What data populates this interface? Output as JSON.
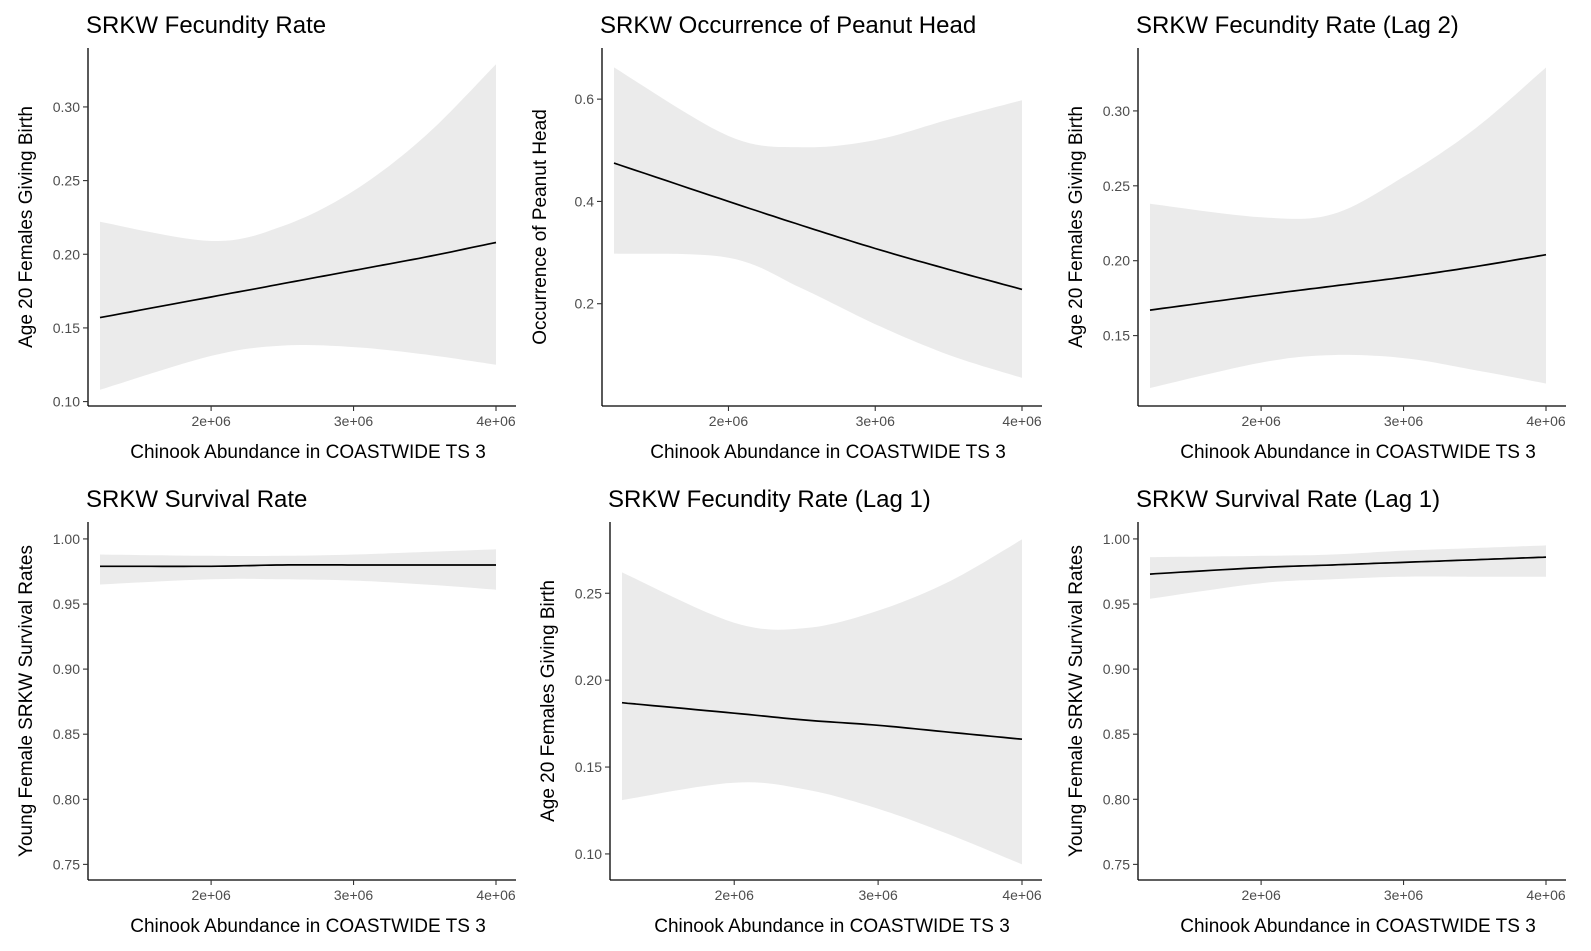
{
  "colors": {
    "band": "#ebebeb",
    "line": "#000000",
    "axis": "#000000",
    "tick_text": "#4d4d4d"
  },
  "chart_data": [
    {
      "type": "line",
      "title": "SRKW Fecundity Rate",
      "xlabel": "Chinook Abundance in  COASTWIDE  TS  3",
      "ylabel": "Age 20 Females Giving Birth",
      "xlim": [
        1220000,
        4000000
      ],
      "ylim": [
        0.097,
        0.34
      ],
      "xticks": [
        2000000,
        3000000,
        4000000
      ],
      "xtick_labels": [
        "2e+06",
        "3e+06",
        "4e+06"
      ],
      "yticks": [
        0.1,
        0.15,
        0.2,
        0.25,
        0.3
      ],
      "ytick_labels": [
        "0.10",
        "0.15",
        "0.20",
        "0.25",
        "0.30"
      ],
      "x": [
        1220000,
        2000000,
        2500000,
        3000000,
        3500000,
        4000000
      ],
      "y": [
        0.157,
        0.171,
        0.18,
        0.189,
        0.198,
        0.208
      ],
      "lower": [
        0.108,
        0.131,
        0.138,
        0.137,
        0.132,
        0.125
      ],
      "upper": [
        0.222,
        0.209,
        0.219,
        0.243,
        0.28,
        0.329
      ]
    },
    {
      "type": "line",
      "title": "SRKW Occurrence of Peanut Head",
      "xlabel": "Chinook Abundance in  COASTWIDE  TS  3",
      "ylabel": "Occurrence of Peanut Head",
      "xlim": [
        1220000,
        4000000
      ],
      "ylim": [
        0.0,
        0.7
      ],
      "xticks": [
        2000000,
        3000000,
        4000000
      ],
      "xtick_labels": [
        "2e+06",
        "3e+06",
        "4e+06"
      ],
      "yticks": [
        0.2,
        0.4,
        0.6
      ],
      "ytick_labels": [
        "0.2",
        "0.4",
        "0.6"
      ],
      "x": [
        1220000,
        2000000,
        2500000,
        3000000,
        3500000,
        4000000
      ],
      "y": [
        0.475,
        0.4,
        0.353,
        0.308,
        0.267,
        0.228
      ],
      "lower": [
        0.298,
        0.29,
        0.23,
        0.16,
        0.1,
        0.055
      ],
      "upper": [
        0.662,
        0.528,
        0.506,
        0.52,
        0.56,
        0.598
      ]
    },
    {
      "type": "line",
      "title": "SRKW Fecundity Rate (Lag 2)",
      "xlabel": "Chinook Abundance in  COASTWIDE  TS  3",
      "ylabel": "Age 20 Females Giving Birth",
      "xlim": [
        1220000,
        4000000
      ],
      "ylim": [
        0.103,
        0.342
      ],
      "xticks": [
        2000000,
        3000000,
        4000000
      ],
      "xtick_labels": [
        "2e+06",
        "3e+06",
        "4e+06"
      ],
      "yticks": [
        0.15,
        0.2,
        0.25,
        0.3
      ],
      "ytick_labels": [
        "0.15",
        "0.20",
        "0.25",
        "0.30"
      ],
      "x": [
        1220000,
        2000000,
        2500000,
        3000000,
        3500000,
        4000000
      ],
      "y": [
        0.167,
        0.177,
        0.183,
        0.189,
        0.196,
        0.204
      ],
      "lower": [
        0.115,
        0.132,
        0.137,
        0.135,
        0.127,
        0.118
      ],
      "upper": [
        0.238,
        0.229,
        0.231,
        0.256,
        0.288,
        0.329
      ]
    },
    {
      "type": "line",
      "title": "SRKW Survival Rate",
      "xlabel": "Chinook Abundance in  COASTWIDE  TS  3",
      "ylabel": "Young Female SRKW Survival Rates",
      "xlim": [
        1220000,
        4000000
      ],
      "ylim": [
        0.738,
        1.013
      ],
      "xticks": [
        2000000,
        3000000,
        4000000
      ],
      "xtick_labels": [
        "2e+06",
        "3e+06",
        "4e+06"
      ],
      "yticks": [
        0.75,
        0.8,
        0.85,
        0.9,
        0.95,
        1.0
      ],
      "ytick_labels": [
        "0.75",
        "0.80",
        "0.85",
        "0.90",
        "0.95",
        "1.00"
      ],
      "x": [
        1220000,
        2000000,
        2500000,
        3000000,
        3500000,
        4000000
      ],
      "y": [
        0.979,
        0.979,
        0.98,
        0.98,
        0.98,
        0.98
      ],
      "lower": [
        0.965,
        0.969,
        0.969,
        0.968,
        0.965,
        0.961
      ],
      "upper": [
        0.988,
        0.987,
        0.987,
        0.988,
        0.99,
        0.992
      ]
    },
    {
      "type": "line",
      "title": "SRKW Fecundity Rate (Lag 1)",
      "xlabel": "Chinook Abundance in  COASTWIDE  TS  3",
      "ylabel": "Age 20 Females Giving Birth",
      "xlim": [
        1220000,
        4000000
      ],
      "ylim": [
        0.085,
        0.291
      ],
      "xticks": [
        2000000,
        3000000,
        4000000
      ],
      "xtick_labels": [
        "2e+06",
        "3e+06",
        "4e+06"
      ],
      "yticks": [
        0.1,
        0.15,
        0.2,
        0.25
      ],
      "ytick_labels": [
        "0.10",
        "0.15",
        "0.20",
        "0.25"
      ],
      "x": [
        1220000,
        2000000,
        2500000,
        3000000,
        3500000,
        4000000
      ],
      "y": [
        0.187,
        0.181,
        0.177,
        0.174,
        0.17,
        0.166
      ],
      "lower": [
        0.131,
        0.141,
        0.137,
        0.126,
        0.111,
        0.094
      ],
      "upper": [
        0.262,
        0.233,
        0.23,
        0.24,
        0.257,
        0.281
      ]
    },
    {
      "type": "line",
      "title": "SRKW Survival Rate (Lag 1)",
      "xlabel": "Chinook Abundance in  COASTWIDE  TS  3",
      "ylabel": "Young Female SRKW Survival Rates",
      "xlim": [
        1220000,
        4000000
      ],
      "ylim": [
        0.738,
        1.013
      ],
      "xticks": [
        2000000,
        3000000,
        4000000
      ],
      "xtick_labels": [
        "2e+06",
        "3e+06",
        "4e+06"
      ],
      "yticks": [
        0.75,
        0.8,
        0.85,
        0.9,
        0.95,
        1.0
      ],
      "ytick_labels": [
        "0.75",
        "0.80",
        "0.85",
        "0.90",
        "0.95",
        "1.00"
      ],
      "x": [
        1220000,
        2000000,
        2500000,
        3000000,
        3500000,
        4000000
      ],
      "y": [
        0.973,
        0.978,
        0.98,
        0.982,
        0.984,
        0.986
      ],
      "lower": [
        0.954,
        0.966,
        0.969,
        0.971,
        0.971,
        0.971
      ],
      "upper": [
        0.986,
        0.987,
        0.988,
        0.991,
        0.993,
        0.995
      ]
    }
  ]
}
